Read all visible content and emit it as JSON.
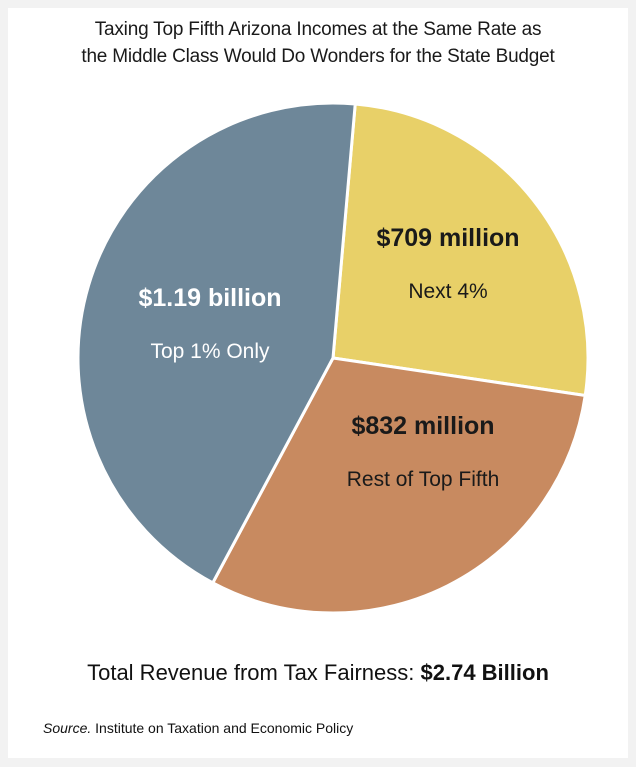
{
  "colors": {
    "background": "#ffffff",
    "top_1": "#6e8799",
    "next_4": "#e8d068",
    "rest_top_fifth": "#c88a60",
    "divider": "#ffffff"
  },
  "chart_data": {
    "type": "pie",
    "title": "Taxing Top Fifth Arizona Incomes at the Same Rate as the Middle Class Would Do Wonders for the State Budget",
    "title_lines": [
      "Taxing Top Fifth Arizona Incomes at the Same Rate as",
      "the Middle Class Would Do Wonders for the State Budget"
    ],
    "unit": "USD",
    "slices": [
      {
        "value_label": "$709 million",
        "category": "Next 4%",
        "value": 709,
        "color": "#e8d068"
      },
      {
        "value_label": "$832 million",
        "category": "Rest of Top Fifth",
        "value": 832,
        "color": "#c88a60"
      },
      {
        "value_label": "$1.19 billion",
        "category": "Top 1% Only",
        "value": 1190,
        "color": "#6e8799"
      }
    ],
    "total": {
      "label": "Total Revenue from Tax Fairness: ",
      "value": "$2.74 Billion"
    },
    "source": {
      "label": "Source.",
      "text": " Institute on Taxation and Economic Policy"
    }
  }
}
